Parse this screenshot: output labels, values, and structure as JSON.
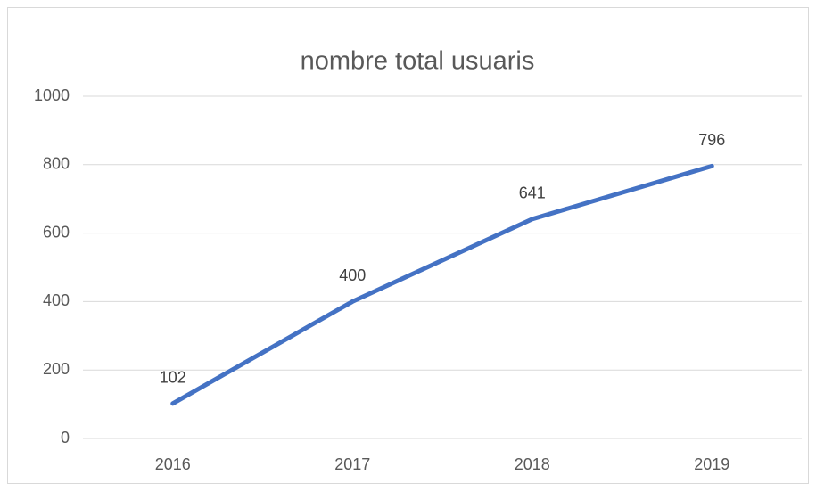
{
  "chart_data": {
    "type": "line",
    "title": "nombre total usuaris",
    "categories": [
      "2016",
      "2017",
      "2018",
      "2019"
    ],
    "values": [
      102,
      400,
      641,
      796
    ],
    "color": "#4472c4",
    "ylim": [
      0,
      1000
    ],
    "yticks": [
      0,
      200,
      400,
      600,
      800,
      1000
    ],
    "grid": true
  }
}
